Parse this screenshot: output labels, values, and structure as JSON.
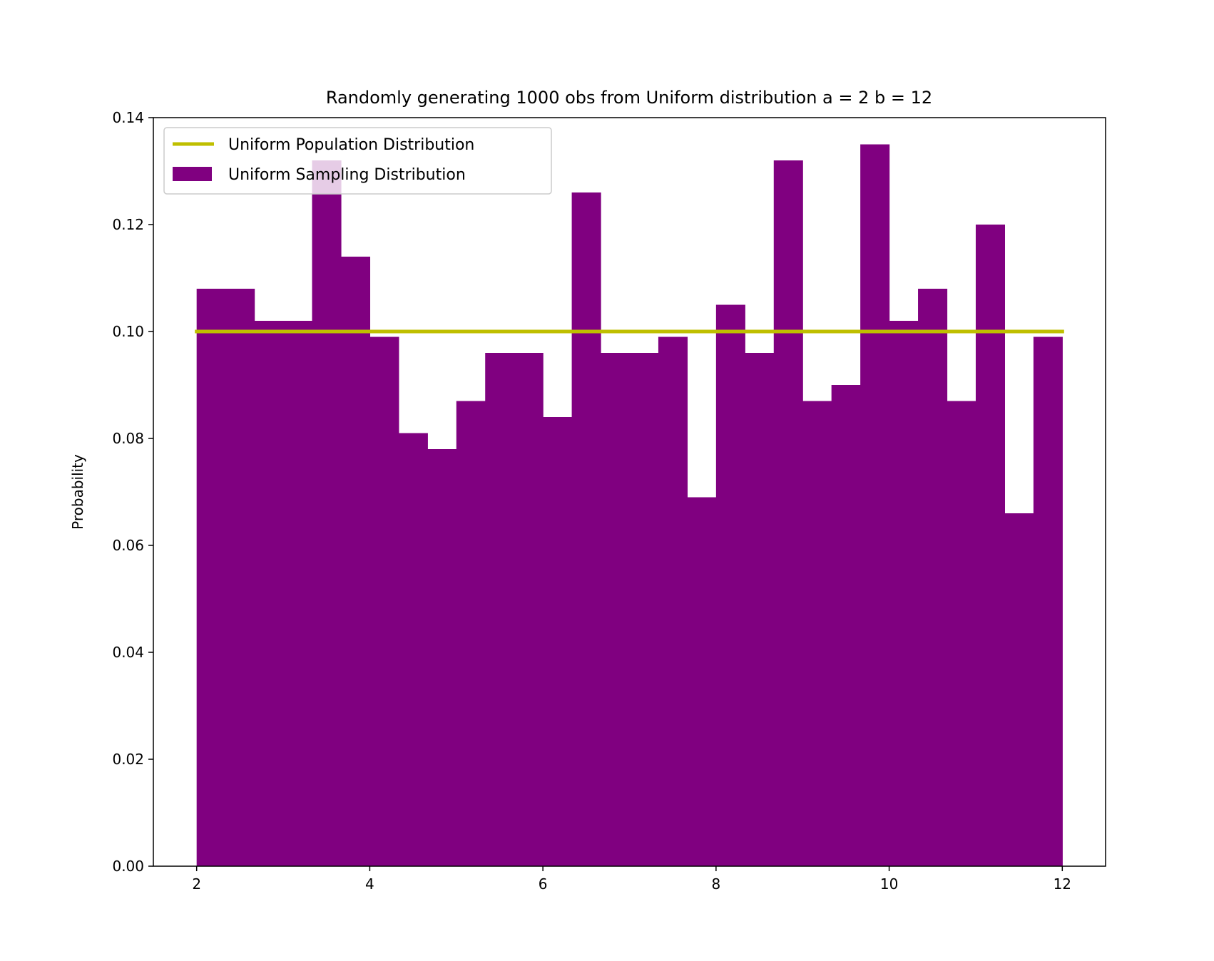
{
  "chart_data": {
    "type": "bar",
    "title": "Randomly generating 1000 obs from Uniform distribution a = 2 b = 12",
    "xlabel": "",
    "ylabel": "Probability",
    "xlim": [
      1.5,
      12.5
    ],
    "ylim": [
      0,
      0.14
    ],
    "xticks": [
      2,
      4,
      6,
      8,
      10,
      12
    ],
    "xtick_labels": [
      "2",
      "4",
      "6",
      "8",
      "10",
      "12"
    ],
    "yticks": [
      0,
      0.02,
      0.04,
      0.06,
      0.08,
      0.1,
      0.12,
      0.14
    ],
    "ytick_labels": [
      "0.00",
      "0.02",
      "0.04",
      "0.06",
      "0.08",
      "0.10",
      "0.12",
      "0.14"
    ],
    "grid": false,
    "legend_position": "top-left",
    "series": [
      {
        "name": "Uniform Population Distribution",
        "type": "line",
        "color": "#bfbf00",
        "x": [
          2,
          12
        ],
        "y": [
          0.1,
          0.1
        ]
      },
      {
        "name": "Uniform Sampling Distribution",
        "type": "histogram",
        "color": "#800080",
        "bin_edges": [
          2.0,
          2.3333,
          2.6667,
          3.0,
          3.3333,
          3.6667,
          4.0,
          4.3333,
          4.6667,
          5.0,
          5.3333,
          5.6667,
          6.0,
          6.3333,
          6.6667,
          7.0,
          7.3333,
          7.6667,
          8.0,
          8.3333,
          8.6667,
          9.0,
          9.3333,
          9.6667,
          10.0,
          10.3333,
          10.6667,
          11.0,
          11.3333,
          11.6667,
          12.0
        ],
        "values": [
          0.108,
          0.108,
          0.102,
          0.102,
          0.132,
          0.114,
          0.099,
          0.081,
          0.078,
          0.087,
          0.096,
          0.096,
          0.084,
          0.126,
          0.096,
          0.096,
          0.099,
          0.069,
          0.105,
          0.096,
          0.132,
          0.087,
          0.09,
          0.135,
          0.102,
          0.108,
          0.087,
          0.12,
          0.066,
          0.099
        ]
      }
    ]
  }
}
